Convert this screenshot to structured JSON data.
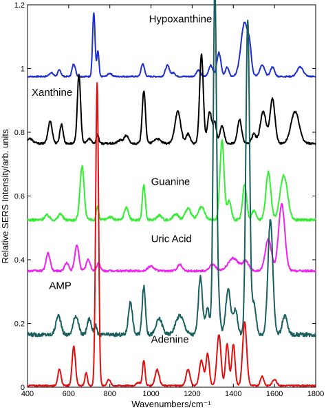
{
  "chart_data": {
    "type": "line",
    "xlabel": "Wavenumbers/cm⁻¹",
    "ylabel": "Relative SERS Intensity/arb. units",
    "xlim": [
      400,
      1800
    ],
    "ylim": [
      0,
      1.2
    ],
    "x_ticks": [
      "400",
      "600",
      "800",
      "1000",
      "1200",
      "1400",
      "1600",
      "1800"
    ],
    "y_ticks": [
      "0",
      "0.2",
      "0.4",
      "0.6",
      "0.8",
      "1",
      "1.2"
    ],
    "grid": false,
    "series": [
      {
        "name": "Hypoxanthine",
        "color": "#1f2fd0",
        "baseline": 0.975,
        "noise": 0.002,
        "peaks": [
          [
            515,
            0.012,
            10
          ],
          [
            555,
            0.02,
            8
          ],
          [
            625,
            0.04,
            8
          ],
          [
            722,
            0.2,
            6
          ],
          [
            742,
            0.08,
            5
          ],
          [
            800,
            0.01,
            10
          ],
          [
            960,
            0.04,
            8
          ],
          [
            1080,
            0.035,
            10
          ],
          [
            1110,
            0.012,
            8
          ],
          [
            1230,
            0.02,
            10
          ],
          [
            1290,
            0.035,
            10
          ],
          [
            1330,
            0.075,
            10
          ],
          [
            1370,
            0.03,
            8
          ],
          [
            1455,
            0.17,
            18
          ],
          [
            1480,
            0.05,
            8
          ],
          [
            1540,
            0.035,
            12
          ],
          [
            1590,
            0.03,
            10
          ],
          [
            1725,
            0.03,
            15
          ]
        ]
      },
      {
        "name": "Xanthine",
        "color": "#000000",
        "baseline": 0.765,
        "noise": 0.003,
        "peaks": [
          [
            410,
            0.015,
            15
          ],
          [
            510,
            0.07,
            10
          ],
          [
            565,
            0.06,
            8
          ],
          [
            650,
            0.215,
            8
          ],
          [
            700,
            0.015,
            10
          ],
          [
            740,
            0.03,
            6
          ],
          [
            850,
            0.01,
            12
          ],
          [
            880,
            0.025,
            10
          ],
          [
            965,
            0.165,
            8
          ],
          [
            1030,
            0.015,
            15
          ],
          [
            1130,
            0.1,
            14
          ],
          [
            1180,
            0.03,
            10
          ],
          [
            1245,
            0.28,
            9
          ],
          [
            1285,
            0.1,
            10
          ],
          [
            1310,
            0.065,
            8
          ],
          [
            1345,
            0.055,
            10
          ],
          [
            1430,
            0.075,
            10
          ],
          [
            1500,
            0.03,
            10
          ],
          [
            1545,
            0.1,
            14
          ],
          [
            1590,
            0.14,
            12
          ],
          [
            1700,
            0.1,
            20
          ]
        ]
      },
      {
        "name": "Guanine",
        "color": "#33ee33",
        "baseline": 0.525,
        "noise": 0.004,
        "peaks": [
          [
            495,
            0.015,
            12
          ],
          [
            560,
            0.02,
            10
          ],
          [
            665,
            0.17,
            10
          ],
          [
            740,
            0.04,
            6
          ],
          [
            800,
            0.01,
            12
          ],
          [
            880,
            0.04,
            10
          ],
          [
            965,
            0.11,
            7
          ],
          [
            1040,
            0.015,
            12
          ],
          [
            1120,
            0.02,
            12
          ],
          [
            1180,
            0.035,
            15
          ],
          [
            1245,
            0.04,
            15
          ],
          [
            1345,
            0.25,
            10
          ],
          [
            1380,
            0.06,
            10
          ],
          [
            1455,
            0.11,
            10
          ],
          [
            1500,
            0.03,
            10
          ],
          [
            1570,
            0.15,
            12
          ],
          [
            1645,
            0.14,
            18
          ]
        ]
      },
      {
        "name": "Uric Acid",
        "color": "#ee22ee",
        "baseline": 0.365,
        "noise": 0.003,
        "peaks": [
          [
            500,
            0.055,
            10
          ],
          [
            590,
            0.025,
            10
          ],
          [
            640,
            0.08,
            10
          ],
          [
            695,
            0.035,
            10
          ],
          [
            745,
            0.025,
            8
          ],
          [
            1000,
            0.015,
            15
          ],
          [
            1140,
            0.02,
            12
          ],
          [
            1300,
            0.02,
            15
          ],
          [
            1400,
            0.04,
            25
          ],
          [
            1460,
            0.03,
            15
          ],
          [
            1570,
            0.1,
            15
          ],
          [
            1635,
            0.21,
            15
          ]
        ]
      },
      {
        "name": "AMP",
        "color": "#1a5f5f",
        "baseline": 0.165,
        "noise": 0.006,
        "peaks": [
          [
            550,
            0.06,
            12
          ],
          [
            635,
            0.06,
            12
          ],
          [
            700,
            0.05,
            10
          ],
          [
            730,
            0.03,
            6
          ],
          [
            900,
            0.1,
            10
          ],
          [
            965,
            0.15,
            8
          ],
          [
            1040,
            0.05,
            15
          ],
          [
            1140,
            0.06,
            20
          ],
          [
            1240,
            0.18,
            10
          ],
          [
            1275,
            0.08,
            10
          ],
          [
            1310,
            1.07,
            8
          ],
          [
            1325,
            0.1,
            10
          ],
          [
            1375,
            0.14,
            12
          ],
          [
            1410,
            0.08,
            10
          ],
          [
            1470,
            0.99,
            9
          ],
          [
            1500,
            0.1,
            10
          ],
          [
            1580,
            0.36,
            12
          ],
          [
            1650,
            0.06,
            12
          ]
        ]
      },
      {
        "name": "Adenine",
        "color": "#e01010",
        "baseline": 0.005,
        "noise": 0.002,
        "peaks": [
          [
            555,
            0.05,
            8
          ],
          [
            625,
            0.125,
            8
          ],
          [
            685,
            0.04,
            6
          ],
          [
            738,
            0.95,
            7
          ],
          [
            795,
            0.02,
            8
          ],
          [
            940,
            0.01,
            10
          ],
          [
            965,
            0.08,
            6
          ],
          [
            1030,
            0.05,
            10
          ],
          [
            1180,
            0.05,
            10
          ],
          [
            1245,
            0.08,
            10
          ],
          [
            1275,
            0.1,
            8
          ],
          [
            1330,
            0.16,
            10
          ],
          [
            1370,
            0.13,
            8
          ],
          [
            1400,
            0.13,
            8
          ],
          [
            1455,
            0.2,
            10
          ],
          [
            1540,
            0.03,
            8
          ],
          [
            1600,
            0.02,
            10
          ]
        ]
      }
    ],
    "annotations": [
      {
        "text": "Hypoxanthine",
        "x": 990,
        "y": 1.145
      },
      {
        "text": "Xanthine",
        "x": 420,
        "y": 0.915
      },
      {
        "text": "Guanine",
        "x": 1000,
        "y": 0.635
      },
      {
        "text": "Uric Acid",
        "x": 1000,
        "y": 0.455
      },
      {
        "text": "AMP",
        "x": 505,
        "y": 0.308
      },
      {
        "text": "Adenine",
        "x": 1000,
        "y": 0.14
      }
    ]
  }
}
